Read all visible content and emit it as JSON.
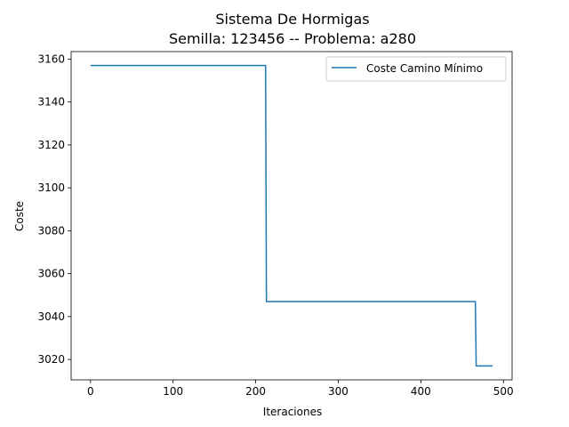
{
  "chart_data": {
    "type": "line",
    "title_line1": "Sistema De Hormigas",
    "title_line2": "Semilla: 123456 -- Problema: a280",
    "xlabel": "Iteraciones",
    "ylabel": "Coste",
    "xlim": [
      -23.5,
      510.5
    ],
    "ylim": [
      3010.5,
      3163.5
    ],
    "xticks": [
      0,
      100,
      200,
      300,
      400,
      500
    ],
    "xtick_labels": [
      "0",
      "100",
      "200",
      "300",
      "400",
      "500"
    ],
    "yticks": [
      3020,
      3040,
      3060,
      3080,
      3100,
      3120,
      3140,
      3160
    ],
    "ytick_labels": [
      "3020",
      "3040",
      "3060",
      "3080",
      "3100",
      "3120",
      "3140",
      "3160"
    ],
    "legend_position": "top-right",
    "series": [
      {
        "name": "Coste Camino Mínimo",
        "color": "#1f77b4",
        "x": [
          0,
          212,
          213,
          466,
          467,
          487
        ],
        "y": [
          3157,
          3157,
          3047,
          3047,
          3017,
          3017
        ]
      }
    ]
  }
}
